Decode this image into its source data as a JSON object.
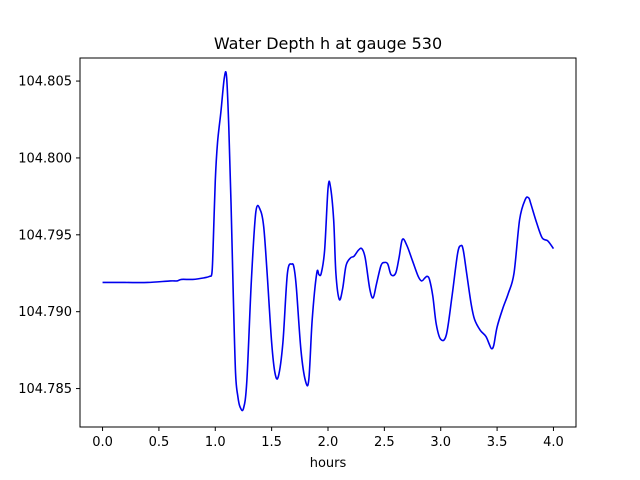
{
  "chart_data": {
    "type": "line",
    "title": "Water Depth h at gauge 530",
    "xlabel": "hours",
    "ylabel": "",
    "xlim": [
      -0.2,
      4.2
    ],
    "ylim": [
      104.7825,
      104.8065
    ],
    "xticks": [
      {
        "value": 0.0,
        "label": "0.0"
      },
      {
        "value": 0.5,
        "label": "0.5"
      },
      {
        "value": 1.0,
        "label": "1.0"
      },
      {
        "value": 1.5,
        "label": "1.5"
      },
      {
        "value": 2.0,
        "label": "2.0"
      },
      {
        "value": 2.5,
        "label": "2.5"
      },
      {
        "value": 3.0,
        "label": "3.0"
      },
      {
        "value": 3.5,
        "label": "3.5"
      },
      {
        "value": 4.0,
        "label": "4.0"
      }
    ],
    "yticks": [
      {
        "value": 104.785,
        "label": "104.785"
      },
      {
        "value": 104.79,
        "label": "104.790"
      },
      {
        "value": 104.795,
        "label": "104.795"
      },
      {
        "value": 104.8,
        "label": "104.800"
      },
      {
        "value": 104.805,
        "label": "104.805"
      }
    ],
    "grid": false,
    "line_color": "#0000ee",
    "series": [
      {
        "x": [
          0.0,
          0.2,
          0.4,
          0.6,
          0.66,
          0.7,
          0.8,
          0.9,
          0.95,
          0.97,
          0.98,
          1.0,
          1.02,
          1.05,
          1.08,
          1.1,
          1.12,
          1.14,
          1.16,
          1.18,
          1.2,
          1.22,
          1.25,
          1.28,
          1.32,
          1.36,
          1.4,
          1.43,
          1.46,
          1.5,
          1.53,
          1.56,
          1.6,
          1.64,
          1.68,
          1.7,
          1.72,
          1.76,
          1.8,
          1.83,
          1.86,
          1.9,
          1.92,
          1.94,
          1.97,
          2.0,
          2.02,
          2.05,
          2.07,
          2.1,
          2.13,
          2.16,
          2.2,
          2.23,
          2.27,
          2.3,
          2.33,
          2.37,
          2.4,
          2.43,
          2.47,
          2.5,
          2.53,
          2.56,
          2.6,
          2.63,
          2.66,
          2.7,
          2.75,
          2.8,
          2.83,
          2.86,
          2.88,
          2.9,
          2.93,
          2.96,
          3.0,
          3.05,
          3.1,
          3.15,
          3.18,
          3.2,
          3.23,
          3.27,
          3.3,
          3.35,
          3.4,
          3.43,
          3.45,
          3.47,
          3.5,
          3.55,
          3.6,
          3.65,
          3.7,
          3.75,
          3.78,
          3.8,
          3.85,
          3.9,
          3.95,
          4.0
        ],
        "y": [
          104.7919,
          104.7919,
          104.7919,
          104.792,
          104.792,
          104.7921,
          104.7921,
          104.7922,
          104.7923,
          104.7925,
          104.794,
          104.7985,
          104.801,
          104.803,
          104.8052,
          104.8053,
          104.802,
          104.797,
          104.791,
          104.786,
          104.7845,
          104.7838,
          104.7837,
          104.7855,
          104.792,
          104.7965,
          104.7966,
          104.7955,
          104.7925,
          104.788,
          104.786,
          104.7858,
          104.788,
          104.7925,
          104.7931,
          104.7928,
          104.7915,
          104.7875,
          104.7855,
          104.7856,
          104.7895,
          104.7925,
          104.7924,
          104.7925,
          104.794,
          104.798,
          104.7982,
          104.796,
          104.7925,
          104.7908,
          104.7915,
          104.793,
          104.7935,
          104.7936,
          104.794,
          104.7941,
          104.7935,
          104.7915,
          104.7909,
          104.7918,
          104.793,
          104.7932,
          104.7931,
          104.7924,
          104.7925,
          104.7935,
          104.7947,
          104.7943,
          104.7933,
          104.7923,
          104.792,
          104.7922,
          104.7923,
          104.7921,
          104.791,
          104.7892,
          104.7882,
          104.7885,
          104.791,
          104.7938,
          104.7943,
          104.794,
          104.7925,
          104.7905,
          104.7895,
          104.7888,
          104.7884,
          104.7879,
          104.7876,
          104.7878,
          104.789,
          104.7902,
          104.7912,
          104.7925,
          104.796,
          104.7973,
          104.7974,
          104.797,
          104.7958,
          104.7948,
          104.7946,
          104.7941
        ]
      }
    ]
  }
}
